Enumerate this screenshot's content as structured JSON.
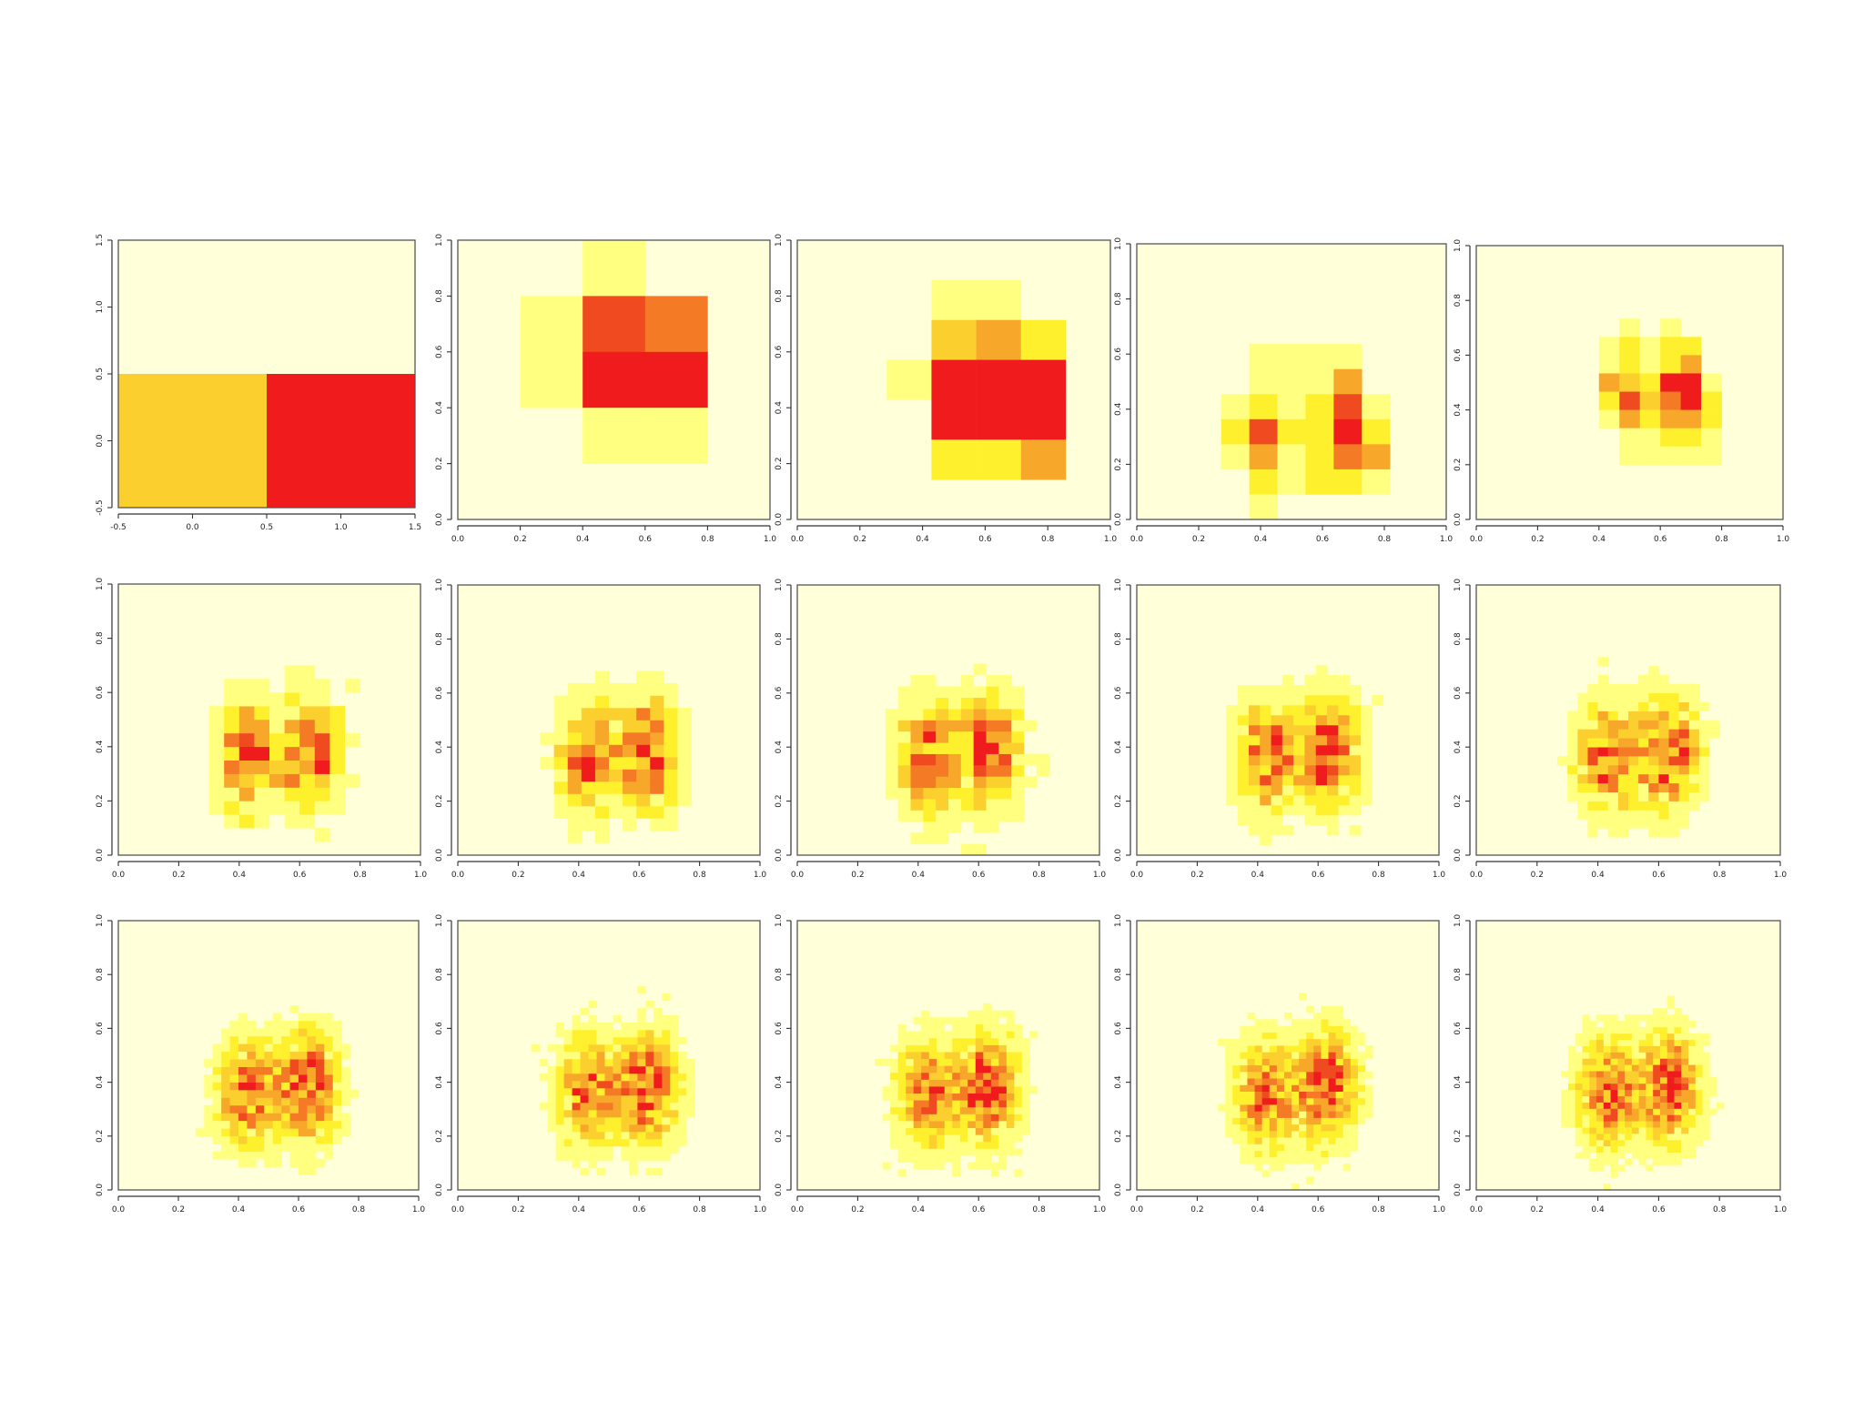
{
  "colors": {
    "background": "#FFFFD9",
    "ramp": [
      "#FFFFD9",
      "#FFFF80",
      "#FFF02E",
      "#FBD02E",
      "#F7A72A",
      "#F47A25",
      "#F04A20",
      "#EF1B1C"
    ]
  },
  "chart_data": [
    {
      "type": "heatmap",
      "panel": 1,
      "bins": 2,
      "x_ticks": [
        "-0.5",
        "0.0",
        "0.5",
        "1.0",
        "1.5"
      ],
      "y_ticks": [
        "-0.5",
        "0.0",
        "0.5",
        "1.0",
        "1.5"
      ],
      "xlim": [
        -0.5,
        1.5
      ],
      "ylim": [
        -0.5,
        1.5
      ],
      "cells": [
        [
          0,
          0,
          3
        ],
        [
          1,
          0,
          7
        ]
      ]
    },
    {
      "type": "heatmap",
      "panel": 2,
      "bins": 5,
      "x_ticks": [
        "0.0",
        "0.2",
        "0.4",
        "0.6",
        "0.8",
        "1.0"
      ],
      "y_ticks": [
        "0.0",
        "0.2",
        "0.4",
        "0.6",
        "0.8",
        "1.0"
      ],
      "xlim": [
        0,
        1
      ],
      "ylim": [
        0,
        1
      ],
      "cells": [
        [
          2,
          4,
          1
        ],
        [
          1,
          3,
          1
        ],
        [
          2,
          3,
          6
        ],
        [
          3,
          3,
          5
        ],
        [
          1,
          2,
          1
        ],
        [
          2,
          2,
          7
        ],
        [
          3,
          2,
          7
        ],
        [
          2,
          1,
          1
        ],
        [
          3,
          1,
          1
        ]
      ]
    },
    {
      "type": "heatmap",
      "panel": 3,
      "bins": 7,
      "x_ticks": [
        "0.0",
        "0.2",
        "0.4",
        "0.6",
        "0.8",
        "1.0"
      ],
      "y_ticks": [
        "0.0",
        "0.2",
        "0.4",
        "0.6",
        "0.8",
        "1.0"
      ],
      "xlim": [
        0,
        1
      ],
      "ylim": [
        0,
        1
      ],
      "cells": [
        [
          3,
          5,
          1
        ],
        [
          4,
          5,
          1
        ],
        [
          3,
          4,
          3
        ],
        [
          4,
          4,
          4
        ],
        [
          5,
          4,
          2
        ],
        [
          2,
          3,
          1
        ],
        [
          3,
          3,
          7
        ],
        [
          4,
          3,
          7
        ],
        [
          5,
          3,
          7
        ],
        [
          3,
          2,
          7
        ],
        [
          4,
          2,
          7
        ],
        [
          5,
          2,
          7
        ],
        [
          3,
          1,
          2
        ],
        [
          4,
          1,
          2
        ],
        [
          5,
          1,
          4
        ]
      ]
    },
    {
      "type": "heatmap",
      "panel": 4,
      "bins": 11,
      "x_ticks": [
        "0.0",
        "0.2",
        "0.4",
        "0.6",
        "0.8",
        "1.0"
      ],
      "y_ticks": [
        "0.0",
        "0.2",
        "0.4",
        "0.6",
        "0.8",
        "1.0"
      ],
      "xlim": [
        0,
        1
      ],
      "ylim": [
        0,
        1
      ],
      "cells": [
        [
          4,
          6,
          1
        ],
        [
          5,
          6,
          1
        ],
        [
          6,
          6,
          1
        ],
        [
          7,
          6,
          1
        ],
        [
          4,
          5,
          1
        ],
        [
          5,
          5,
          1
        ],
        [
          6,
          5,
          1
        ],
        [
          7,
          5,
          4
        ],
        [
          3,
          4,
          1
        ],
        [
          4,
          4,
          2
        ],
        [
          5,
          4,
          1
        ],
        [
          6,
          4,
          2
        ],
        [
          7,
          4,
          6
        ],
        [
          8,
          4,
          1
        ],
        [
          3,
          3,
          2
        ],
        [
          4,
          3,
          6
        ],
        [
          5,
          3,
          2
        ],
        [
          6,
          3,
          2
        ],
        [
          7,
          3,
          7
        ],
        [
          8,
          3,
          2
        ],
        [
          3,
          2,
          1
        ],
        [
          4,
          2,
          4
        ],
        [
          5,
          2,
          1
        ],
        [
          6,
          2,
          2
        ],
        [
          7,
          2,
          5
        ],
        [
          8,
          2,
          4
        ],
        [
          4,
          1,
          2
        ],
        [
          5,
          1,
          1
        ],
        [
          6,
          1,
          2
        ],
        [
          7,
          1,
          2
        ],
        [
          8,
          1,
          1
        ],
        [
          4,
          0,
          1
        ]
      ]
    },
    {
      "type": "heatmap",
      "panel": 5,
      "bins": 15,
      "x_ticks": [
        "0.0",
        "0.2",
        "0.4",
        "0.6",
        "0.8",
        "1.0"
      ],
      "y_ticks": [
        "0.0",
        "0.2",
        "0.4",
        "0.6",
        "0.8",
        "1.0"
      ],
      "xlim": [
        0,
        1
      ],
      "ylim": [
        0,
        1
      ],
      "cells": [
        [
          7,
          10,
          1
        ],
        [
          9,
          10,
          1
        ],
        [
          6,
          9,
          1
        ],
        [
          7,
          9,
          2
        ],
        [
          8,
          9,
          1
        ],
        [
          9,
          9,
          2
        ],
        [
          10,
          9,
          2
        ],
        [
          6,
          8,
          1
        ],
        [
          7,
          8,
          2
        ],
        [
          8,
          8,
          1
        ],
        [
          9,
          8,
          2
        ],
        [
          10,
          8,
          4
        ],
        [
          6,
          7,
          4
        ],
        [
          7,
          7,
          3
        ],
        [
          8,
          7,
          2
        ],
        [
          9,
          7,
          7
        ],
        [
          10,
          7,
          7
        ],
        [
          11,
          7,
          1
        ],
        [
          6,
          6,
          2
        ],
        [
          7,
          6,
          6
        ],
        [
          8,
          6,
          3
        ],
        [
          9,
          6,
          5
        ],
        [
          10,
          6,
          7
        ],
        [
          11,
          6,
          2
        ],
        [
          6,
          5,
          1
        ],
        [
          7,
          5,
          4
        ],
        [
          8,
          5,
          2
        ],
        [
          9,
          5,
          4
        ],
        [
          10,
          5,
          4
        ],
        [
          11,
          5,
          2
        ],
        [
          7,
          4,
          1
        ],
        [
          8,
          4,
          1
        ],
        [
          9,
          4,
          2
        ],
        [
          10,
          4,
          2
        ],
        [
          11,
          4,
          1
        ],
        [
          7,
          3,
          1
        ],
        [
          8,
          3,
          1
        ],
        [
          9,
          3,
          1
        ],
        [
          10,
          3,
          1
        ],
        [
          11,
          3,
          1
        ]
      ]
    },
    {
      "type": "heatmap",
      "panel": 6,
      "bins": 20,
      "seed": 11,
      "x_ticks": [
        "0.0",
        "0.2",
        "0.4",
        "0.6",
        "0.8",
        "1.0"
      ],
      "y_ticks": [
        "0.0",
        "0.2",
        "0.4",
        "0.6",
        "0.8",
        "1.0"
      ],
      "xlim": [
        0,
        1
      ],
      "ylim": [
        0,
        1
      ]
    },
    {
      "type": "heatmap",
      "panel": 7,
      "bins": 22,
      "seed": 23,
      "x_ticks": [
        "0.0",
        "0.2",
        "0.4",
        "0.6",
        "0.8",
        "1.0"
      ],
      "y_ticks": [
        "0.0",
        "0.2",
        "0.4",
        "0.6",
        "0.8",
        "1.0"
      ],
      "xlim": [
        0,
        1
      ],
      "ylim": [
        0,
        1
      ]
    },
    {
      "type": "heatmap",
      "panel": 8,
      "bins": 24,
      "seed": 37,
      "x_ticks": [
        "0.0",
        "0.2",
        "0.4",
        "0.6",
        "0.8",
        "1.0"
      ],
      "y_ticks": [
        "0.0",
        "0.2",
        "0.4",
        "0.6",
        "0.8",
        "1.0"
      ],
      "xlim": [
        0,
        1
      ],
      "ylim": [
        0,
        1
      ]
    },
    {
      "type": "heatmap",
      "panel": 9,
      "bins": 27,
      "seed": 41,
      "x_ticks": [
        "0.0",
        "0.2",
        "0.4",
        "0.6",
        "0.8",
        "1.0"
      ],
      "y_ticks": [
        "0.0",
        "0.2",
        "0.4",
        "0.6",
        "0.8",
        "1.0"
      ],
      "xlim": [
        0,
        1
      ],
      "ylim": [
        0,
        1
      ]
    },
    {
      "type": "heatmap",
      "panel": 10,
      "bins": 30,
      "seed": 53,
      "x_ticks": [
        "0.0",
        "0.2",
        "0.4",
        "0.6",
        "0.8",
        "1.0"
      ],
      "y_ticks": [
        "0.0",
        "0.2",
        "0.4",
        "0.6",
        "0.8",
        "1.0"
      ],
      "xlim": [
        0,
        1
      ],
      "ylim": [
        0,
        1
      ]
    },
    {
      "type": "heatmap",
      "panel": 11,
      "bins": 35,
      "seed": 61,
      "x_ticks": [
        "0.0",
        "0.2",
        "0.4",
        "0.6",
        "0.8",
        "1.0"
      ],
      "y_ticks": [
        "0.0",
        "0.2",
        "0.4",
        "0.6",
        "0.8",
        "1.0"
      ],
      "xlim": [
        0,
        1
      ],
      "ylim": [
        0,
        1
      ]
    },
    {
      "type": "heatmap",
      "panel": 12,
      "bins": 37,
      "seed": 71,
      "x_ticks": [
        "0.0",
        "0.2",
        "0.4",
        "0.6",
        "0.8",
        "1.0"
      ],
      "y_ticks": [
        "0.0",
        "0.2",
        "0.4",
        "0.6",
        "0.8",
        "1.0"
      ],
      "xlim": [
        0,
        1
      ],
      "ylim": [
        0,
        1
      ]
    },
    {
      "type": "heatmap",
      "panel": 13,
      "bins": 39,
      "seed": 83,
      "x_ticks": [
        "0.0",
        "0.2",
        "0.4",
        "0.6",
        "0.8",
        "1.0"
      ],
      "y_ticks": [
        "0.0",
        "0.2",
        "0.4",
        "0.6",
        "0.8",
        "1.0"
      ],
      "xlim": [
        0,
        1
      ],
      "ylim": [
        0,
        1
      ]
    },
    {
      "type": "heatmap",
      "panel": 14,
      "bins": 41,
      "seed": 97,
      "x_ticks": [
        "0.0",
        "0.2",
        "0.4",
        "0.6",
        "0.8",
        "1.0"
      ],
      "y_ticks": [
        "0.0",
        "0.2",
        "0.4",
        "0.6",
        "0.8",
        "1.0"
      ],
      "xlim": [
        0,
        1
      ],
      "ylim": [
        0,
        1
      ]
    },
    {
      "type": "heatmap",
      "panel": 15,
      "bins": 43,
      "seed": 101,
      "x_ticks": [
        "0.0",
        "0.2",
        "0.4",
        "0.6",
        "0.8",
        "1.0"
      ],
      "y_ticks": [
        "0.0",
        "0.2",
        "0.4",
        "0.6",
        "0.8",
        "1.0"
      ],
      "xlim": [
        0,
        1
      ],
      "ylim": [
        0,
        1
      ]
    }
  ]
}
